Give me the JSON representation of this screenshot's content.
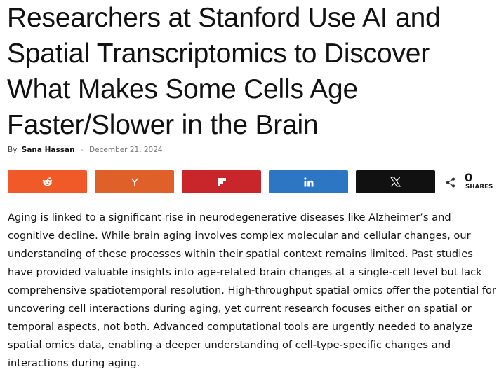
{
  "article": {
    "title": "Researchers at Stanford Use AI and Spatial Transcriptomics to Discover What Makes Some Cells Age Faster/Slower in the Brain",
    "byline_prefix": "By",
    "author": "Sana Hassan",
    "separator": "-",
    "date": "December 21, 2024",
    "body": "Aging is linked to a significant rise in neurodegenerative diseases like Alzheimer’s and cognitive decline. While brain aging involves complex molecular and cellular changes, our understanding of these processes within their spatial context remains limited. Past studies have provided valuable insights into age-related brain changes at a single-cell level but lack comprehensive spatiotemporal resolution. High-throughput spatial omics offer the potential for uncovering cell interactions during aging, yet current research focuses either on spatial or temporal aspects, not both. Advanced computational tools are urgently needed to analyze spatial omics data, enabling a deeper understanding of cell-type-specific changes and interactions during aging."
  },
  "share": {
    "buttons": [
      {
        "icon": "reddit-icon",
        "color": "#f05a28"
      },
      {
        "icon": "hacker-news-icon",
        "color": "#e0602a"
      },
      {
        "icon": "flipboard-icon",
        "color": "#c8262b"
      },
      {
        "icon": "linkedin-icon",
        "color": "#2d76c4"
      },
      {
        "icon": "x-icon",
        "color": "#111111"
      }
    ],
    "count": "0",
    "label": "SHARES",
    "count_icon": "share-icon"
  }
}
